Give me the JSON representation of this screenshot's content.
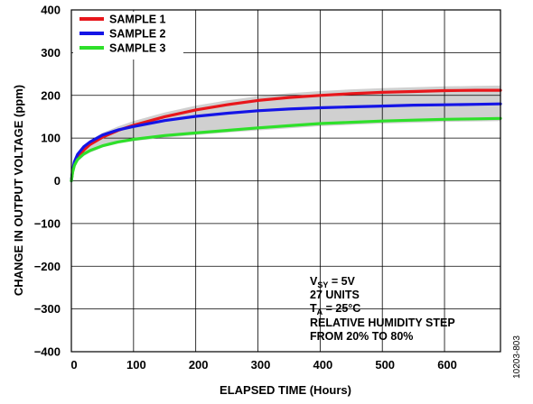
{
  "chart_data": {
    "type": "line",
    "title": "",
    "xlabel": "ELAPSED TIME (Hours)",
    "ylabel": "CHANGE IN OUTPUT VOLTAGE (ppm)",
    "xlim": [
      0,
      690
    ],
    "ylim": [
      -400,
      400
    ],
    "x_ticks": [
      0,
      100,
      200,
      300,
      400,
      500,
      600
    ],
    "y_ticks": [
      -400,
      -300,
      -200,
      -100,
      0,
      100,
      200,
      300,
      400
    ],
    "grid": true,
    "legend_position": "top-left",
    "series": [
      {
        "name": "SAMPLE 1",
        "color": "#e8161b",
        "x": [
          0,
          2,
          5,
          10,
          20,
          30,
          50,
          75,
          100,
          150,
          200,
          250,
          300,
          350,
          400,
          450,
          500,
          550,
          600,
          650,
          690
        ],
        "y": [
          0,
          22,
          40,
          55,
          72,
          85,
          102,
          118,
          130,
          150,
          166,
          178,
          188,
          195,
          200,
          204,
          207,
          209,
          211,
          212,
          212
        ]
      },
      {
        "name": "SAMPLE 2",
        "color": "#1414e6",
        "x": [
          0,
          2,
          5,
          10,
          20,
          30,
          50,
          75,
          100,
          150,
          200,
          250,
          300,
          350,
          400,
          450,
          500,
          550,
          600,
          650,
          690
        ],
        "y": [
          0,
          25,
          45,
          62,
          80,
          91,
          107,
          119,
          127,
          141,
          151,
          158,
          164,
          168,
          171,
          173,
          175,
          177,
          178,
          179,
          180
        ]
      },
      {
        "name": "SAMPLE 3",
        "color": "#2ee02a",
        "x": [
          0,
          2,
          5,
          10,
          20,
          30,
          50,
          75,
          100,
          150,
          200,
          250,
          300,
          350,
          400,
          450,
          500,
          550,
          600,
          650,
          690
        ],
        "y": [
          0,
          20,
          36,
          50,
          63,
          71,
          82,
          91,
          97,
          106,
          112,
          118,
          124,
          129,
          134,
          137,
          140,
          142,
          144,
          145,
          146
        ]
      }
    ],
    "background_band": {
      "color": "#c8c8c8",
      "x": [
        0,
        2,
        5,
        10,
        20,
        30,
        50,
        75,
        100,
        150,
        200,
        250,
        300,
        350,
        400,
        450,
        500,
        550,
        600,
        650,
        690
      ],
      "lower": [
        0,
        17,
        32,
        45,
        58,
        66,
        78,
        87,
        93,
        101,
        107,
        113,
        118,
        123,
        128,
        131,
        134,
        136,
        138,
        139,
        140
      ],
      "upper": [
        0,
        27,
        48,
        64,
        82,
        95,
        112,
        127,
        140,
        160,
        176,
        188,
        198,
        205,
        210,
        214,
        217,
        219,
        221,
        222,
        223
      ]
    },
    "annotation": {
      "line1_main": "V",
      "line1_sub": "SY",
      "line1_rest": " = 5V",
      "line2": "27 UNITS",
      "line3_main": "T",
      "line3_sub": "A",
      "line3_rest": " = 25°C",
      "line4": "RELATIVE HUMIDITY STEP",
      "line5": "FROM 20% TO 80%"
    },
    "figure_id": "10203-803"
  }
}
